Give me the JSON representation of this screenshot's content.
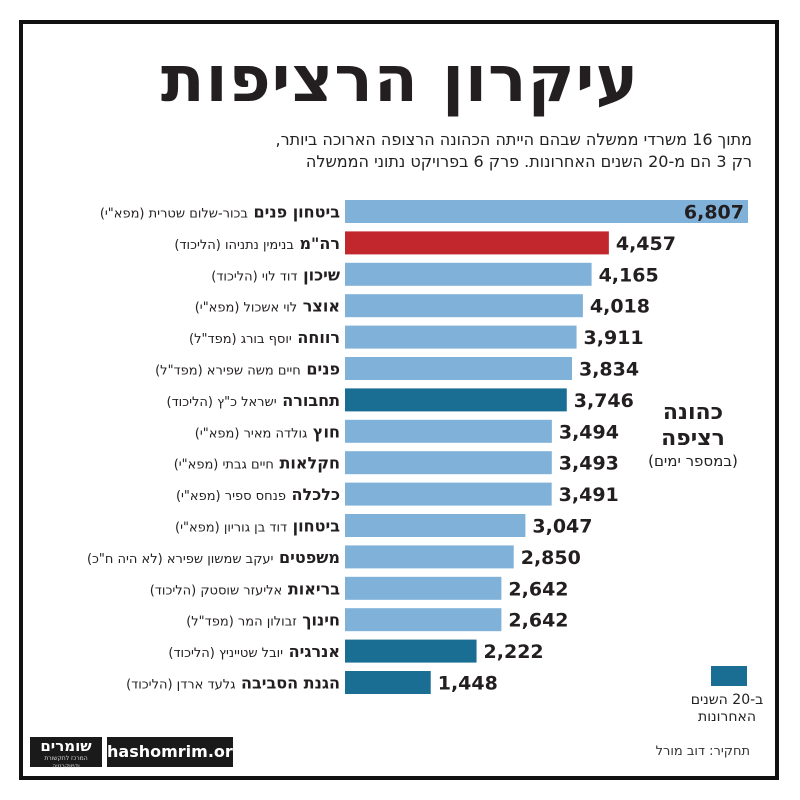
{
  "title": "עיקרון הרציפות",
  "subtitle": [
    "מתוך 16 משרדי ממשלה שבהם הייתה הכהונה הרצופה הארוכה ביותר,",
    "רק 3 הם מ-20 השנים האחרונות. פרק 6 בפרויקט נתוני הממשלה"
  ],
  "colors": {
    "default": "#7fb1d9",
    "prime_minister": "#c1272d",
    "last_20_years": "#1a6e94"
  },
  "chart_data": {
    "type": "bar",
    "orientation": "horizontal",
    "unit": "days",
    "xlim": [
      0,
      6807
    ],
    "categories": [
      {
        "office": "ביטחון פנים",
        "minister": "בכור-שלום שטרית (מפא\"י)",
        "value": 6807,
        "group": "default"
      },
      {
        "office": "רה\"מ",
        "minister": "בנימין נתניהו (הליכוד)",
        "value": 4457,
        "group": "prime_minister"
      },
      {
        "office": "שיכון",
        "minister": "דוד לוי (הליכוד)",
        "value": 4165,
        "group": "default"
      },
      {
        "office": "אוצר",
        "minister": "לוי אשכול (מפא\"י)",
        "value": 4018,
        "group": "default"
      },
      {
        "office": "רווחה",
        "minister": "יוסף בורג (מפד\"ל)",
        "value": 3911,
        "group": "default"
      },
      {
        "office": "פנים",
        "minister": "חיים משה שפירא (מפד\"ל)",
        "value": 3834,
        "group": "default"
      },
      {
        "office": "תחבורה",
        "minister": "ישראל כ\"ץ (הליכוד)",
        "value": 3746,
        "group": "last_20_years"
      },
      {
        "office": "חוץ",
        "minister": "גולדה מאיר (מפא\"י)",
        "value": 3494,
        "group": "default"
      },
      {
        "office": "חקלאות",
        "minister": "חיים גבתי (מפא\"י)",
        "value": 3493,
        "group": "default"
      },
      {
        "office": "כלכלה",
        "minister": "פנחס ספיר (מפא\"י)",
        "value": 3491,
        "group": "default"
      },
      {
        "office": "ביטחון",
        "minister": "דוד בן גוריון (מפא\"י)",
        "value": 3047,
        "group": "default"
      },
      {
        "office": "משפטים",
        "minister": "יעקב שמשון שפירא (לא היה ח\"כ)",
        "value": 2850,
        "group": "default"
      },
      {
        "office": "בריאות",
        "minister": "אליעזר שוסטק (הליכוד)",
        "value": 2642,
        "group": "default"
      },
      {
        "office": "חינוך",
        "minister": "זבולון המר (מפד\"ל)",
        "value": 2642,
        "group": "default"
      },
      {
        "office": "אנרגיה",
        "minister": "יובל שטייניץ (הליכוד)",
        "value": 2222,
        "group": "last_20_years"
      },
      {
        "office": "הגנת הסביבה",
        "minister": "גלעד ארדן (הליכוד)",
        "value": 1448,
        "group": "last_20_years"
      }
    ],
    "value_label_in_bar_index": 0
  },
  "legend": {
    "title_line1": "כהונה",
    "title_line2": "רציפה",
    "subtitle": "(במספר ימים)",
    "swatch_line1": "ב-20 השנים",
    "swatch_line2": "האחרונות"
  },
  "footer": {
    "logo": "שומרים",
    "logo_tagline": "המרכז לתקשורת ודמוקרטיה",
    "site": "hashomrim.org",
    "credit": "תחקיר: דוב מורל"
  }
}
